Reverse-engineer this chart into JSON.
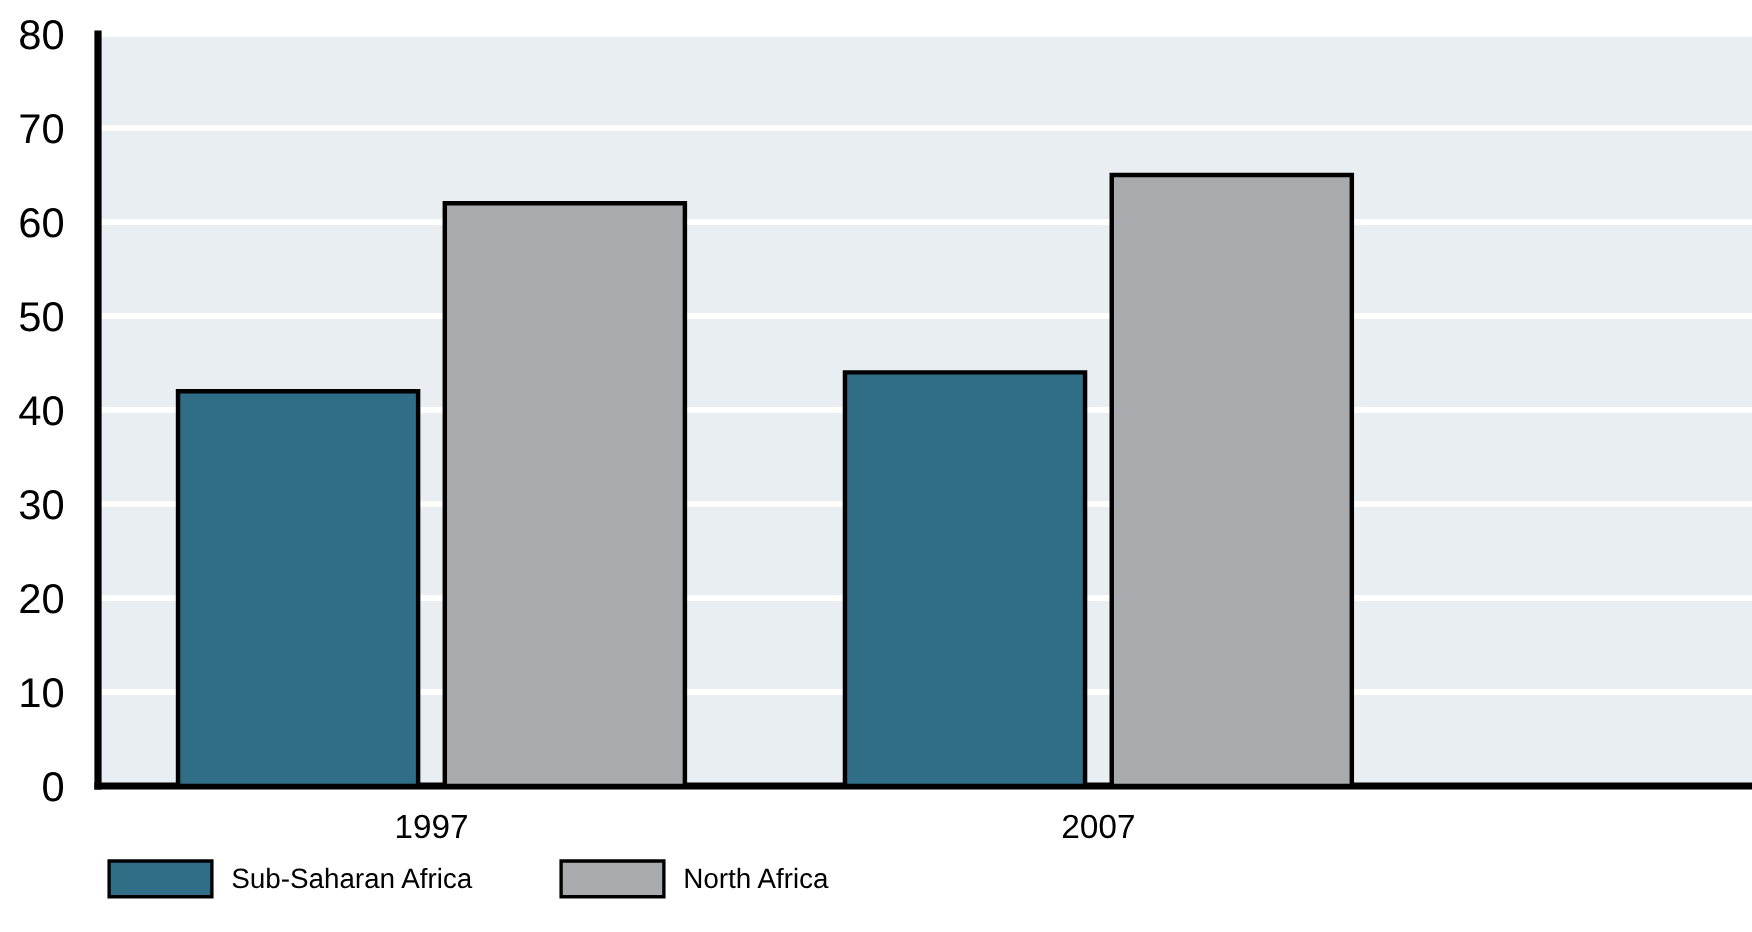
{
  "chart_data": {
    "type": "bar",
    "categories": [
      "1997",
      "2007"
    ],
    "series": [
      {
        "name": "Sub-Saharan Africa",
        "color": "#306d87",
        "values": [
          42,
          44
        ]
      },
      {
        "name": "North Africa",
        "color": "#a9aaae",
        "values": [
          62,
          65
        ]
      }
    ],
    "ylim": [
      0,
      80
    ],
    "yticks": [
      0,
      10,
      20,
      30,
      40,
      50,
      60,
      70,
      80
    ],
    "grid": "y",
    "legend": "bottom"
  }
}
